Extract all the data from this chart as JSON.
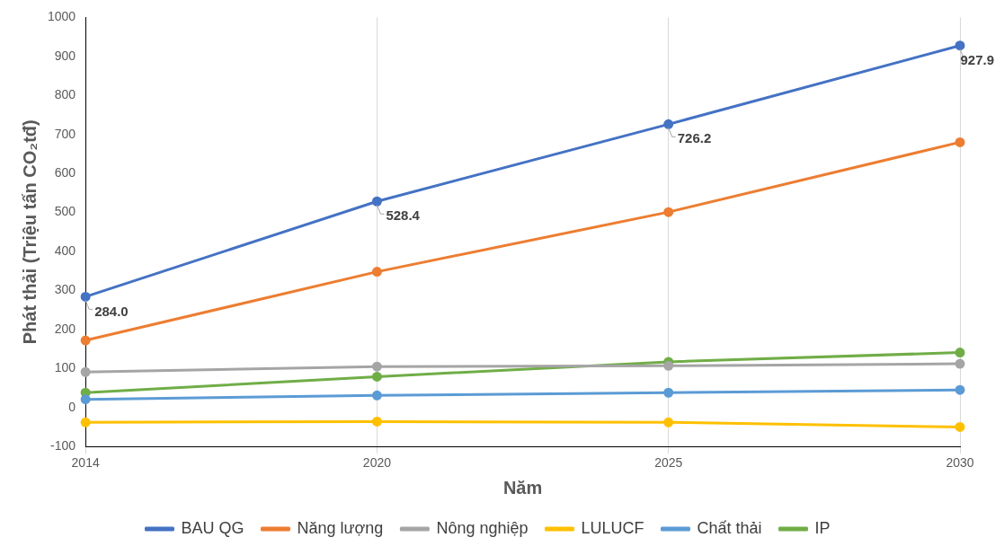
{
  "chart_data": {
    "type": "line",
    "xlabel": "Năm",
    "ylabel": "Phát thải (Triệu tấn CO₂tđ)",
    "categories": [
      "2014",
      "2020",
      "2025",
      "2030"
    ],
    "ylim": [
      -100,
      1000
    ],
    "yticks": [
      -100,
      0,
      100,
      200,
      300,
      400,
      500,
      600,
      700,
      800,
      900,
      1000
    ],
    "grid": "x",
    "legend": "bottom",
    "marker": "circle",
    "series": [
      {
        "name": "BAU QG",
        "color": "#4472c4",
        "values": [
          284.0,
          528.4,
          726.2,
          927.9
        ],
        "value_labels": [
          "284.0",
          "528.4",
          "726.2",
          "927.9"
        ]
      },
      {
        "name": "Năng lượng",
        "color": "#ed7d31",
        "values": [
          172,
          348,
          501,
          680
        ]
      },
      {
        "name": "Nông nghiệp",
        "color": "#a5a5a5",
        "values": [
          91,
          105,
          107,
          112
        ]
      },
      {
        "name": "LULUCF",
        "color": "#ffc000",
        "values": [
          -38,
          -36,
          -38,
          -50
        ]
      },
      {
        "name": "Chất thải",
        "color": "#5b9bd5",
        "values": [
          21,
          31,
          38,
          45
        ]
      },
      {
        "name": "IP",
        "color": "#70ad47",
        "values": [
          38,
          79,
          117,
          141
        ]
      }
    ]
  }
}
